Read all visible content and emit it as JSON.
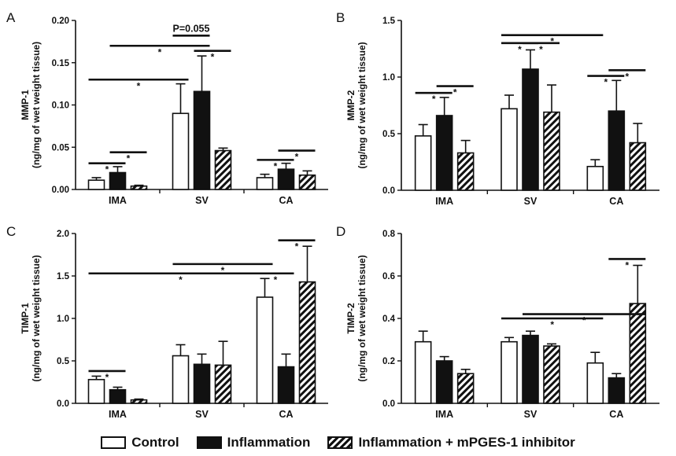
{
  "legend": {
    "control": "Control",
    "inflammation": "Inflammation",
    "inhibitor": "Inflammation + mPGES-1 inhibitor"
  },
  "chart_data": [
    {
      "type": "bar",
      "panel": "A",
      "ylabel": "MMP-1",
      "ylabel2": "(ng/mg of wet weight tissue)",
      "categories": [
        "IMA",
        "SV",
        "CA"
      ],
      "ylim": [
        0,
        0.2
      ],
      "yticks": [
        "0.00",
        "0.05",
        "0.10",
        "0.15",
        "0.20"
      ],
      "series": [
        {
          "name": "Control",
          "values": [
            0.011,
            0.09,
            0.014
          ],
          "errors": [
            0.003,
            0.035,
            0.004
          ]
        },
        {
          "name": "Inflammation",
          "values": [
            0.02,
            0.116,
            0.024
          ],
          "errors": [
            0.007,
            0.042,
            0.007
          ]
        },
        {
          "name": "Inflammation + mPGES-1 inhibitor",
          "values": [
            0.004,
            0.046,
            0.017
          ],
          "errors": [
            0.001,
            0.003,
            0.005
          ]
        }
      ],
      "annotations": [
        {
          "text": "*",
          "from": [
            0,
            0
          ],
          "to": [
            0,
            1
          ],
          "y": 0.031
        },
        {
          "text": "*",
          "from": [
            0,
            1
          ],
          "to": [
            0,
            2
          ],
          "y": 0.044
        },
        {
          "text": "*",
          "from": [
            0,
            0
          ],
          "to": [
            1,
            0
          ],
          "y": 0.13
        },
        {
          "text": "*",
          "from": [
            0,
            1
          ],
          "to": [
            1,
            1
          ],
          "y": 0.17
        },
        {
          "text": "P=0.055",
          "from": [
            1,
            0
          ],
          "to": [
            1,
            1
          ],
          "y": 0.182,
          "label_above": true
        },
        {
          "text": "*",
          "from": [
            1,
            1
          ],
          "to": [
            1,
            2
          ],
          "y": 0.164
        },
        {
          "text": "*",
          "from": [
            2,
            0
          ],
          "to": [
            2,
            1
          ],
          "y": 0.035
        },
        {
          "text": "*",
          "from": [
            2,
            1
          ],
          "to": [
            2,
            2
          ],
          "y": 0.046
        }
      ]
    },
    {
      "type": "bar",
      "panel": "B",
      "ylabel": "MMP-2",
      "ylabel2": "(ng/mg of wet weight tissue)",
      "categories": [
        "IMA",
        "SV",
        "CA"
      ],
      "ylim": [
        0,
        1.5
      ],
      "yticks": [
        "0.0",
        "0.5",
        "1.0",
        "1.5"
      ],
      "series": [
        {
          "name": "Control",
          "values": [
            0.48,
            0.72,
            0.21
          ],
          "errors": [
            0.1,
            0.12,
            0.06
          ]
        },
        {
          "name": "Inflammation",
          "values": [
            0.66,
            1.07,
            0.7
          ],
          "errors": [
            0.16,
            0.17,
            0.27
          ]
        },
        {
          "name": "Inflammation + mPGES-1 inhibitor",
          "values": [
            0.33,
            0.69,
            0.42
          ],
          "errors": [
            0.11,
            0.24,
            0.17
          ]
        }
      ],
      "annotations": [
        {
          "text": "*",
          "from": [
            0,
            0
          ],
          "to": [
            0,
            1
          ],
          "y": 0.86
        },
        {
          "text": "*",
          "from": [
            0,
            1
          ],
          "to": [
            0,
            2
          ],
          "y": 0.92
        },
        {
          "text": "*",
          "from": [
            1,
            0
          ],
          "to": [
            1,
            1
          ],
          "y": 1.3
        },
        {
          "text": "*",
          "from": [
            1,
            1
          ],
          "to": [
            1,
            2
          ],
          "y": 1.3
        },
        {
          "text": "*",
          "from": [
            1,
            0
          ],
          "to": [
            2,
            0
          ],
          "y": 1.37
        },
        {
          "text": "*",
          "from": [
            2,
            0
          ],
          "to": [
            2,
            1
          ],
          "y": 1.01
        },
        {
          "text": "*",
          "from": [
            2,
            1
          ],
          "to": [
            2,
            2
          ],
          "y": 1.06
        }
      ]
    },
    {
      "type": "bar",
      "panel": "C",
      "ylabel": "TIMP-1",
      "ylabel2": "(ng/mg of wet weight tissue)",
      "categories": [
        "IMA",
        "SV",
        "CA"
      ],
      "ylim": [
        0,
        2.0
      ],
      "yticks": [
        "0.0",
        "0.5",
        "1.0",
        "1.5",
        "2.0"
      ],
      "series": [
        {
          "name": "Control",
          "values": [
            0.28,
            0.56,
            1.25
          ],
          "errors": [
            0.04,
            0.13,
            0.22
          ]
        },
        {
          "name": "Inflammation",
          "values": [
            0.16,
            0.46,
            0.43
          ],
          "errors": [
            0.03,
            0.12,
            0.15
          ]
        },
        {
          "name": "Inflammation + mPGES-1 inhibitor",
          "values": [
            0.04,
            0.45,
            1.43
          ],
          "errors": [
            0.01,
            0.28,
            0.42
          ]
        }
      ],
      "annotations": [
        {
          "text": "*",
          "from": [
            0,
            0
          ],
          "to": [
            0,
            1
          ],
          "y": 0.38
        },
        {
          "text": "*",
          "from": [
            0,
            0
          ],
          "to": [
            2,
            0
          ],
          "y": 1.53,
          "label_below": true
        },
        {
          "text": "*",
          "from": [
            1,
            0
          ],
          "to": [
            2,
            0
          ],
          "y": 1.64
        },
        {
          "text": "*",
          "from": [
            2,
            0
          ],
          "to": [
            2,
            1
          ],
          "y": 1.53
        },
        {
          "text": "*",
          "from": [
            2,
            1
          ],
          "to": [
            2,
            2
          ],
          "y": 1.92,
          "label_below": true
        }
      ]
    },
    {
      "type": "bar",
      "panel": "D",
      "ylabel": "TIMP-2",
      "ylabel2": "(ng/mg of wet weight tissue)",
      "categories": [
        "IMA",
        "SV",
        "CA"
      ],
      "ylim": [
        0,
        0.8
      ],
      "yticks": [
        "0.0",
        "0.2",
        "0.4",
        "0.6",
        "0.8"
      ],
      "series": [
        {
          "name": "Control",
          "values": [
            0.29,
            0.29,
            0.19
          ],
          "errors": [
            0.05,
            0.02,
            0.05
          ]
        },
        {
          "name": "Inflammation",
          "values": [
            0.2,
            0.32,
            0.12
          ],
          "errors": [
            0.02,
            0.02,
            0.02
          ]
        },
        {
          "name": "Inflammation + mPGES-1 inhibitor",
          "values": [
            0.14,
            0.27,
            0.47
          ],
          "errors": [
            0.02,
            0.01,
            0.18
          ]
        }
      ],
      "annotations": [
        {
          "text": "*",
          "from": [
            1,
            0
          ],
          "to": [
            2,
            0
          ],
          "y": 0.4
        },
        {
          "text": "*",
          "from": [
            1,
            1
          ],
          "to": [
            2,
            2
          ],
          "y": 0.42,
          "label_below": true
        },
        {
          "text": "*",
          "from": [
            2,
            1
          ],
          "to": [
            2,
            2
          ],
          "y": 0.68
        }
      ]
    }
  ]
}
